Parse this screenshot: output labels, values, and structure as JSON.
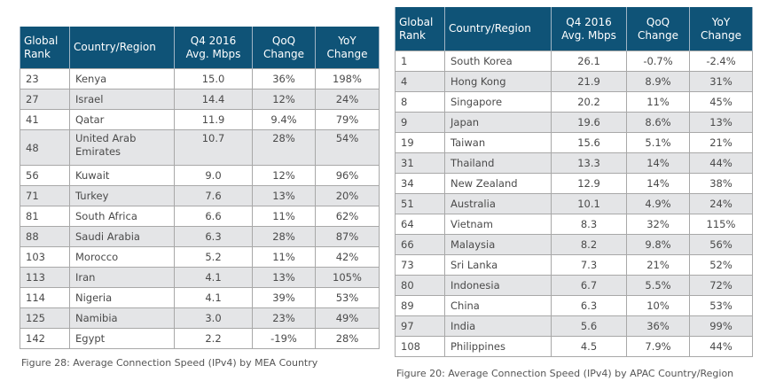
{
  "mea_table": {
    "headers": [
      "Global Rank",
      "Country/Region",
      "Q4 2016 Avg. Mbps",
      "QoQ Change",
      "YoY Change"
    ],
    "header_lines": [
      [
        "Global",
        "Rank"
      ],
      [
        "Country/Region"
      ],
      [
        "Q4 2016",
        "Avg. Mbps"
      ],
      [
        "QoQ",
        "Change"
      ],
      [
        "YoY",
        "Change"
      ]
    ],
    "rows": [
      [
        "23",
        "Kenya",
        "15.0",
        "36%",
        "198%"
      ],
      [
        "27",
        "Israel",
        "14.4",
        "12%",
        "24%"
      ],
      [
        "41",
        "Qatar",
        "11.9",
        "9.4%",
        "79%"
      ],
      [
        "48",
        "United Arab Emirates",
        "10.7",
        "28%",
        "54%"
      ],
      [
        "56",
        "Kuwait",
        "9.0",
        "12%",
        "96%"
      ],
      [
        "71",
        "Turkey",
        "7.6",
        "13%",
        "20%"
      ],
      [
        "81",
        "South Africa",
        "6.6",
        "11%",
        "62%"
      ],
      [
        "88",
        "Saudi Arabia",
        "6.3",
        "28%",
        "87%"
      ],
      [
        "103",
        "Morocco",
        "5.2",
        "11%",
        "42%"
      ],
      [
        "113",
        "Iran",
        "4.1",
        "13%",
        "105%"
      ],
      [
        "114",
        "Nigeria",
        "4.1",
        "39%",
        "53%"
      ],
      [
        "125",
        "Namibia",
        "3.0",
        "23%",
        "49%"
      ],
      [
        "142",
        "Egypt",
        "2.2",
        "-19%",
        "28%"
      ]
    ],
    "caption": "Figure 28: Average Connection Speed (IPv4) by MEA Country"
  },
  "apac_table": {
    "headers": [
      "Global Rank",
      "Country/Region",
      "Q4 2016 Avg. Mbps",
      "QoQ Change",
      "YoY Change"
    ],
    "header_lines": [
      [
        "Global",
        "Rank"
      ],
      [
        "Country/Region"
      ],
      [
        "Q4 2016",
        "Avg. Mbps"
      ],
      [
        "QoQ",
        "Change"
      ],
      [
        "YoY",
        "Change"
      ]
    ],
    "rows": [
      [
        "1",
        "South Korea",
        "26.1",
        "-0.7%",
        "-2.4%"
      ],
      [
        "4",
        "Hong Kong",
        "21.9",
        "8.9%",
        "31%"
      ],
      [
        "8",
        "Singapore",
        "20.2",
        "11%",
        "45%"
      ],
      [
        "9",
        "Japan",
        "19.6",
        "8.6%",
        "13%"
      ],
      [
        "19",
        "Taiwan",
        "15.6",
        "5.1%",
        "21%"
      ],
      [
        "31",
        "Thailand",
        "13.3",
        "14%",
        "44%"
      ],
      [
        "34",
        "New Zealand",
        "12.9",
        "14%",
        "38%"
      ],
      [
        "51",
        "Australia",
        "10.1",
        "4.9%",
        "24%"
      ],
      [
        "64",
        "Vietnam",
        "8.3",
        "32%",
        "115%"
      ],
      [
        "66",
        "Malaysia",
        "8.2",
        "9.8%",
        "56%"
      ],
      [
        "73",
        "Sri Lanka",
        "7.3",
        "21%",
        "52%"
      ],
      [
        "80",
        "Indonesia",
        "6.7",
        "5.5%",
        "72%"
      ],
      [
        "89",
        "China",
        "6.3",
        "10%",
        "53%"
      ],
      [
        "97",
        "India",
        "5.6",
        "36%",
        "99%"
      ],
      [
        "108",
        "Philippines",
        "4.5",
        "7.9%",
        "44%"
      ]
    ],
    "caption": "Figure 20: Average Connection Speed (IPv4) by APAC Country/Region"
  },
  "colors": {
    "header_bg": "#0f5377",
    "alt_row_bg": "#e4e5e7",
    "border": "#a8a8a8"
  }
}
